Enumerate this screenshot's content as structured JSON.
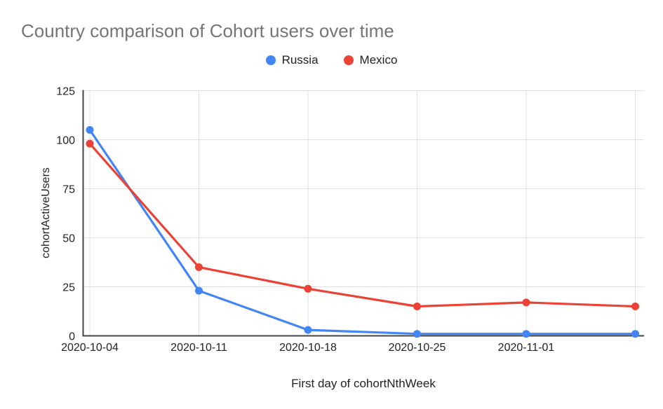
{
  "page": {
    "background": "#ffffff"
  },
  "chart_data": {
    "type": "line",
    "title": "Country comparison of Cohort users over time",
    "xlabel": "First day of cohortNthWeek",
    "ylabel": "cohortActiveUsers",
    "categories": [
      "2020-10-04",
      "2020-10-11",
      "2020-10-18",
      "2020-10-25",
      "2020-11-01",
      ""
    ],
    "series": [
      {
        "name": "Russia",
        "color": "#4285f4",
        "values": [
          105,
          23,
          3,
          1,
          1,
          1
        ]
      },
      {
        "name": "Mexico",
        "color": "#ea4335",
        "values": [
          98,
          35,
          24,
          15,
          17,
          15
        ]
      }
    ],
    "ylim": [
      0,
      125
    ],
    "yticks": [
      0,
      25,
      50,
      75,
      100,
      125
    ],
    "grid": true,
    "legend_position": "top",
    "marker_style": "circle",
    "colors": {
      "title_text": "#757575",
      "axis_text": "#222222",
      "gridline": "#e0e0e0",
      "axis_line": "#444444"
    }
  }
}
